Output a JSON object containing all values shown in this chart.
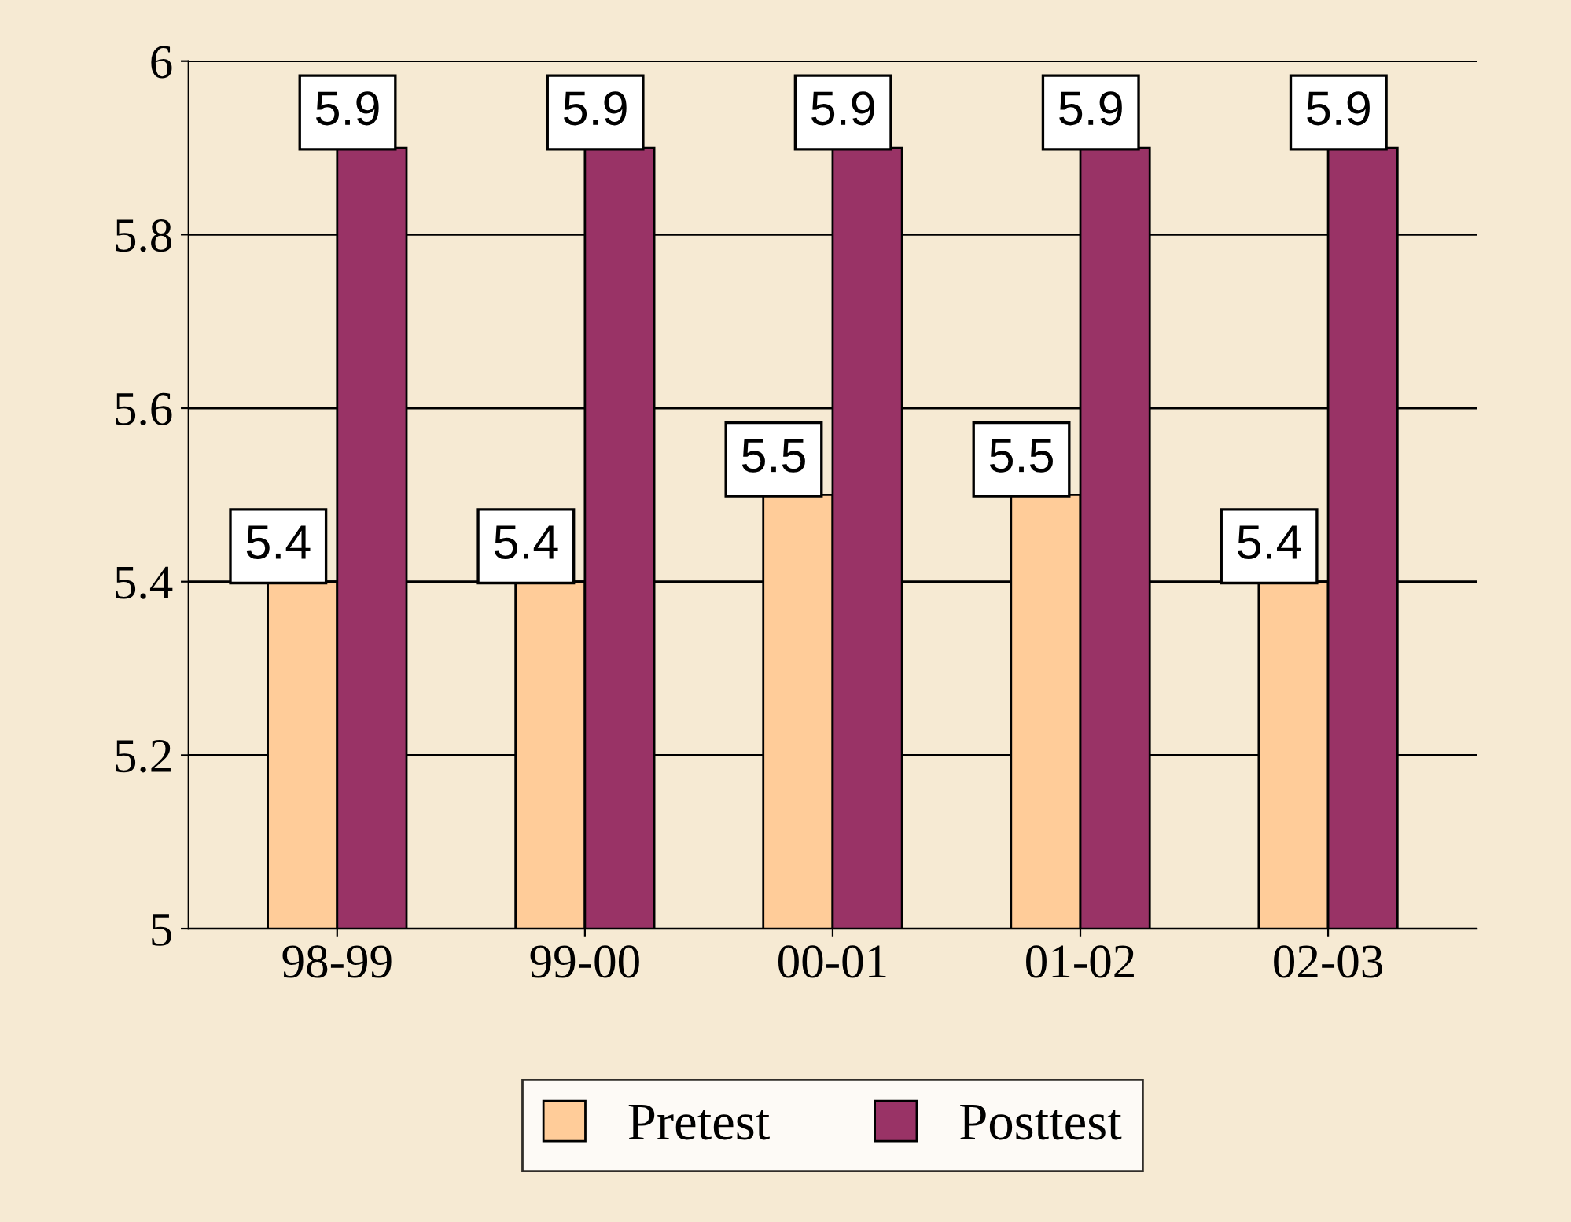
{
  "chart_data": {
    "type": "bar",
    "categories": [
      "98-99",
      "99-00",
      "00-01",
      "01-02",
      "02-03"
    ],
    "series": [
      {
        "name": "Pretest",
        "color": "#ffcc99",
        "values": [
          5.4,
          5.4,
          5.5,
          5.5,
          5.4
        ]
      },
      {
        "name": "Posttest",
        "color": "#993366",
        "values": [
          5.9,
          5.9,
          5.9,
          5.9,
          5.9
        ]
      }
    ],
    "ylim": [
      5,
      6
    ],
    "yticks": [
      5,
      5.2,
      5.4,
      5.6,
      5.8,
      6
    ],
    "grid": "y",
    "legend": "bottom",
    "data_labels": true
  }
}
